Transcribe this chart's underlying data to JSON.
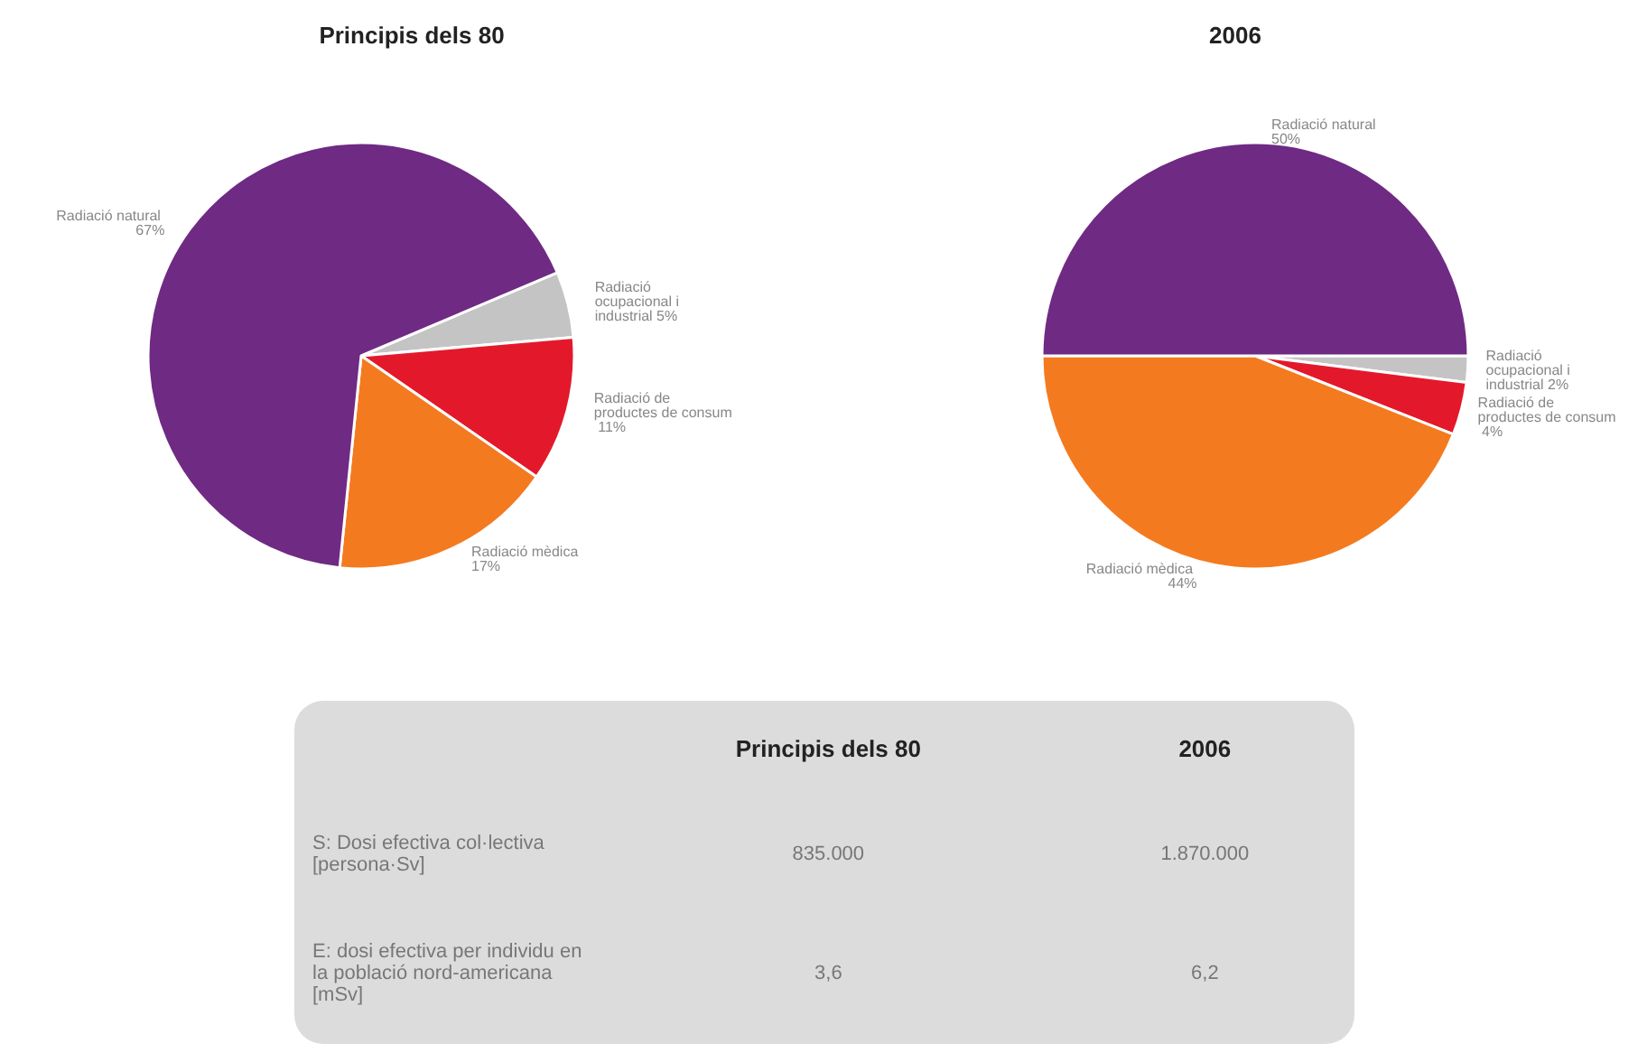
{
  "chart_data": [
    {
      "type": "pie",
      "title": "Principis dels 80",
      "categories": [
        "Radiació ocupacional i industrial",
        "Radiació de productes de consum",
        "Radiació mèdica",
        "Radiació natural"
      ],
      "values": [
        5,
        11,
        17,
        67
      ],
      "colors": [
        "#c4c4c4",
        "#e3192b",
        "#f47a20",
        "#6f2a84"
      ],
      "value_labels": [
        "5%",
        "11%",
        "17%",
        "67%"
      ]
    },
    {
      "type": "pie",
      "title": "2006",
      "categories": [
        "Radiació ocupacional i industrial",
        "Radiació de productes de consum",
        "Radiació mèdica",
        "Radiació natural"
      ],
      "values": [
        2,
        4,
        44,
        50
      ],
      "colors": [
        "#c4c4c4",
        "#e3192b",
        "#f47a20",
        "#6f2a84"
      ],
      "value_labels": [
        "2%",
        "4%",
        "44%",
        "50%"
      ]
    },
    {
      "type": "other",
      "categories": [
        "Principis dels 80",
        "2006"
      ],
      "y_categories": [
        "S: Dosi efectiva col·lectiva [persona·Sv]",
        "E: dosi efectiva per individu en la població nord-americana [mSv]"
      ],
      "cell_labels": [
        [
          "835.000",
          "1.870.000"
        ],
        [
          "3,6",
          "6,2"
        ]
      ]
    }
  ]
}
